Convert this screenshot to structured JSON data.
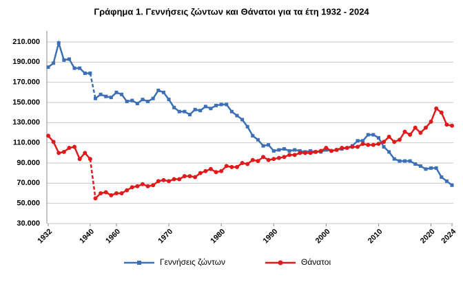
{
  "chart_data": {
    "type": "line",
    "title": "Γράφημα 1.  Γεννήσεις ζώντων και Θάνατοι για τα έτη 1932 - 2024",
    "categories": [
      "1932",
      null,
      null,
      null,
      null,
      null,
      null,
      null,
      "1940",
      null,
      null,
      null,
      null,
      "1960",
      null,
      null,
      null,
      null,
      null,
      null,
      null,
      null,
      null,
      "1970",
      null,
      null,
      null,
      null,
      null,
      null,
      null,
      null,
      null,
      "1980",
      null,
      null,
      null,
      null,
      null,
      null,
      null,
      null,
      null,
      "1990",
      null,
      null,
      null,
      null,
      null,
      null,
      null,
      null,
      null,
      "2000",
      null,
      null,
      null,
      null,
      null,
      null,
      null,
      null,
      null,
      "2010",
      null,
      null,
      null,
      null,
      null,
      null,
      null,
      null,
      null,
      "2020",
      null,
      null,
      null,
      "2024"
    ],
    "series": [
      {
        "name": "Γεννήσεις ζώντων",
        "color": "#3c6fb6",
        "marker": "square",
        "values": [
          185000,
          189000,
          209000,
          192000,
          193000,
          184000,
          184000,
          179000,
          179000,
          154000,
          158000,
          156000,
          155000,
          160000,
          158000,
          151000,
          152000,
          149000,
          153000,
          151000,
          154000,
          162000,
          160000,
          153000,
          145000,
          141000,
          141000,
          138000,
          143000,
          142000,
          146000,
          144000,
          147000,
          148000,
          148000,
          141000,
          137000,
          133000,
          126000,
          117000,
          113000,
          107000,
          108000,
          102000,
          103000,
          104000,
          102000,
          103000,
          102000,
          101000,
          102000,
          101000,
          101000,
          103000,
          102000,
          103000,
          104000,
          105000,
          107000,
          112000,
          112000,
          118000,
          118000,
          115000,
          106000,
          101000,
          94000,
          92000,
          92000,
          92000,
          89000,
          87000,
          84000,
          85000,
          85000,
          76000,
          72000,
          68000
        ]
      },
      {
        "name": "Θάνατοι",
        "color": "#e01a1a",
        "marker": "circle",
        "values": [
          117000,
          111000,
          100000,
          101000,
          105000,
          106000,
          94000,
          100000,
          94000,
          55000,
          60000,
          61000,
          58000,
          60000,
          60000,
          63000,
          66000,
          67000,
          69000,
          67000,
          68000,
          72000,
          73000,
          72000,
          74000,
          74000,
          77000,
          77000,
          76000,
          80000,
          82000,
          84000,
          81000,
          82000,
          87000,
          86000,
          86000,
          90000,
          89000,
          93000,
          92000,
          96000,
          93000,
          94000,
          95000,
          96000,
          98000,
          98000,
          100000,
          100000,
          100000,
          101000,
          102000,
          105000,
          102000,
          103000,
          105000,
          105000,
          106000,
          106000,
          109000,
          108000,
          108000,
          109000,
          111000,
          116000,
          111000,
          113000,
          121000,
          118000,
          125000,
          120000,
          125000,
          131000,
          144000,
          140000,
          128000,
          127000
        ]
      }
    ],
    "dashed_segment": [
      8,
      9
    ],
    "ylim": [
      30000,
      210000
    ],
    "yticks": [
      {
        "value": 30000,
        "label": "30.000"
      },
      {
        "value": 50000,
        "label": "50.000"
      },
      {
        "value": 70000,
        "label": "70.000"
      },
      {
        "value": 90000,
        "label": "90.000"
      },
      {
        "value": 110000,
        "label": "110.000"
      },
      {
        "value": 130000,
        "label": "130.000"
      },
      {
        "value": 150000,
        "label": "150.000"
      },
      {
        "value": 170000,
        "label": "170.000"
      },
      {
        "value": 190000,
        "label": "190.000"
      },
      {
        "value": 210000,
        "label": "210.000"
      }
    ],
    "grid": true,
    "legend": "bottom"
  }
}
